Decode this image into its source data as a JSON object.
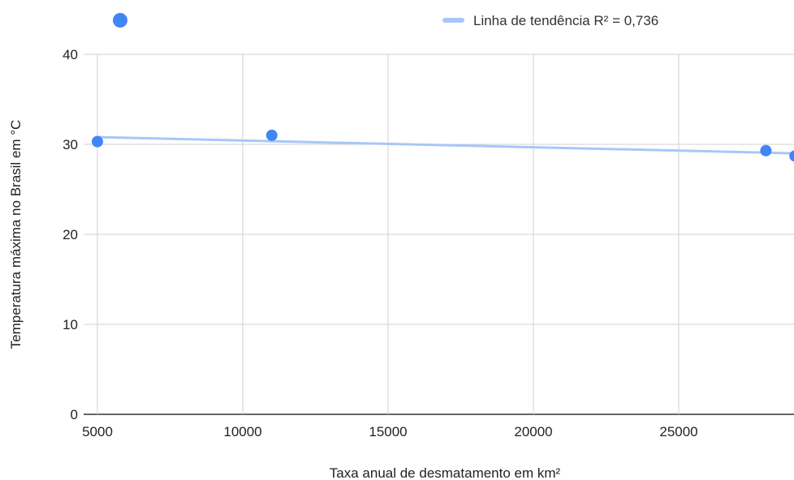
{
  "chart_data": {
    "type": "scatter",
    "title": "",
    "xlabel": "Taxa anual de desmatamento em km²",
    "ylabel": "Temperatura máxima no Brasil em °C",
    "xlim": [
      5000,
      29000
    ],
    "ylim": [
      0,
      40
    ],
    "x_ticks": [
      5000,
      10000,
      15000,
      20000,
      25000
    ],
    "y_ticks": [
      0,
      10,
      20,
      30,
      40
    ],
    "grid": true,
    "legend_position": "top",
    "point_color": "#4285f4",
    "trendline_color": "#a8c7fa",
    "points": [
      {
        "x": 5000,
        "y": 30.3
      },
      {
        "x": 11000,
        "y": 31.0
      },
      {
        "x": 28000,
        "y": 29.3
      },
      {
        "x": 29000,
        "y": 28.7
      }
    ],
    "trendline": {
      "label": "Linha de tendência R² = 0,736",
      "start": {
        "x": 5000,
        "y": 30.8
      },
      "end": {
        "x": 29000,
        "y": 29.0
      }
    }
  }
}
